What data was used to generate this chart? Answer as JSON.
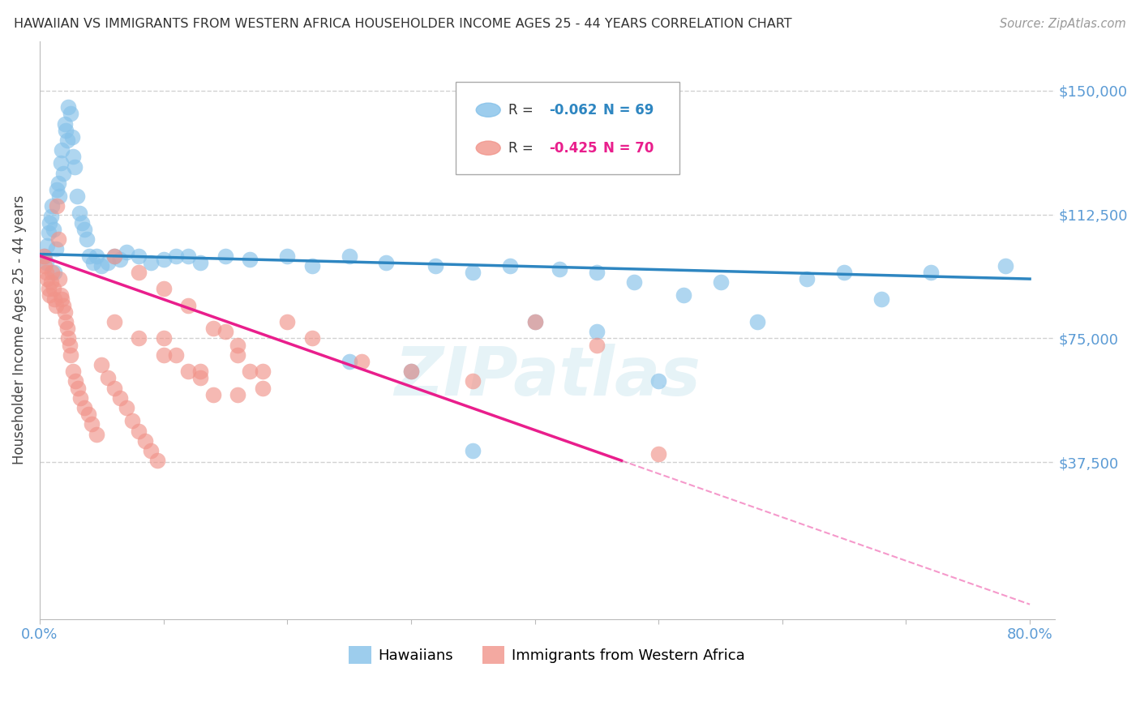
{
  "title": "HAWAIIAN VS IMMIGRANTS FROM WESTERN AFRICA HOUSEHOLDER INCOME AGES 25 - 44 YEARS CORRELATION CHART",
  "source": "Source: ZipAtlas.com",
  "ylabel": "Householder Income Ages 25 - 44 years",
  "ytick_labels": [
    "$150,000",
    "$112,500",
    "$75,000",
    "$37,500"
  ],
  "ytick_values": [
    150000,
    112500,
    75000,
    37500
  ],
  "ylim": [
    -10000,
    165000
  ],
  "xlim": [
    0.0,
    0.82
  ],
  "color_hawaiian": "#85C1E9",
  "color_western_africa": "#F1948A",
  "color_line_hawaiian": "#2E86C1",
  "color_line_western_africa": "#E91E8C",
  "color_axis_labels": "#5B9BD5",
  "bg_color": "#FFFFFF",
  "grid_color": "#CCCCCC",
  "hawaiian_x": [
    0.004,
    0.005,
    0.006,
    0.007,
    0.008,
    0.009,
    0.01,
    0.011,
    0.012,
    0.013,
    0.014,
    0.015,
    0.016,
    0.017,
    0.018,
    0.019,
    0.02,
    0.021,
    0.022,
    0.023,
    0.025,
    0.026,
    0.027,
    0.028,
    0.03,
    0.032,
    0.034,
    0.036,
    0.038,
    0.04,
    0.043,
    0.046,
    0.05,
    0.055,
    0.06,
    0.065,
    0.07,
    0.08,
    0.09,
    0.1,
    0.11,
    0.12,
    0.13,
    0.15,
    0.17,
    0.2,
    0.22,
    0.25,
    0.28,
    0.32,
    0.35,
    0.38,
    0.42,
    0.45,
    0.48,
    0.52,
    0.55,
    0.58,
    0.62,
    0.65,
    0.68,
    0.72,
    0.78,
    0.25,
    0.3,
    0.35,
    0.4,
    0.45,
    0.5
  ],
  "hawaiian_y": [
    100000,
    98000,
    103000,
    107000,
    110000,
    112000,
    115000,
    108000,
    95000,
    102000,
    120000,
    122000,
    118000,
    128000,
    132000,
    125000,
    140000,
    138000,
    135000,
    145000,
    143000,
    136000,
    130000,
    127000,
    118000,
    113000,
    110000,
    108000,
    105000,
    100000,
    98000,
    100000,
    97000,
    98000,
    100000,
    99000,
    101000,
    100000,
    98000,
    99000,
    100000,
    100000,
    98000,
    100000,
    99000,
    100000,
    97000,
    100000,
    98000,
    97000,
    95000,
    97000,
    96000,
    95000,
    92000,
    88000,
    92000,
    80000,
    93000,
    95000,
    87000,
    95000,
    97000,
    68000,
    65000,
    41000,
    80000,
    77000,
    62000
  ],
  "wa_x": [
    0.003,
    0.004,
    0.005,
    0.006,
    0.007,
    0.008,
    0.009,
    0.01,
    0.011,
    0.012,
    0.013,
    0.014,
    0.015,
    0.016,
    0.017,
    0.018,
    0.019,
    0.02,
    0.021,
    0.022,
    0.023,
    0.024,
    0.025,
    0.027,
    0.029,
    0.031,
    0.033,
    0.036,
    0.039,
    0.042,
    0.046,
    0.05,
    0.055,
    0.06,
    0.065,
    0.07,
    0.075,
    0.08,
    0.085,
    0.09,
    0.095,
    0.1,
    0.11,
    0.12,
    0.13,
    0.14,
    0.15,
    0.16,
    0.17,
    0.18,
    0.2,
    0.22,
    0.26,
    0.3,
    0.35,
    0.4,
    0.45,
    0.5,
    0.06,
    0.08,
    0.1,
    0.12,
    0.14,
    0.16,
    0.18,
    0.06,
    0.08,
    0.1,
    0.13,
    0.16
  ],
  "wa_y": [
    100000,
    97000,
    95000,
    93000,
    90000,
    88000,
    92000,
    95000,
    90000,
    87000,
    85000,
    115000,
    105000,
    93000,
    88000,
    87000,
    85000,
    83000,
    80000,
    78000,
    75000,
    73000,
    70000,
    65000,
    62000,
    60000,
    57000,
    54000,
    52000,
    49000,
    46000,
    67000,
    63000,
    60000,
    57000,
    54000,
    50000,
    47000,
    44000,
    41000,
    38000,
    75000,
    70000,
    65000,
    63000,
    58000,
    77000,
    70000,
    65000,
    60000,
    80000,
    75000,
    68000,
    65000,
    62000,
    80000,
    73000,
    40000,
    100000,
    95000,
    90000,
    85000,
    78000,
    73000,
    65000,
    80000,
    75000,
    70000,
    65000,
    58000
  ]
}
